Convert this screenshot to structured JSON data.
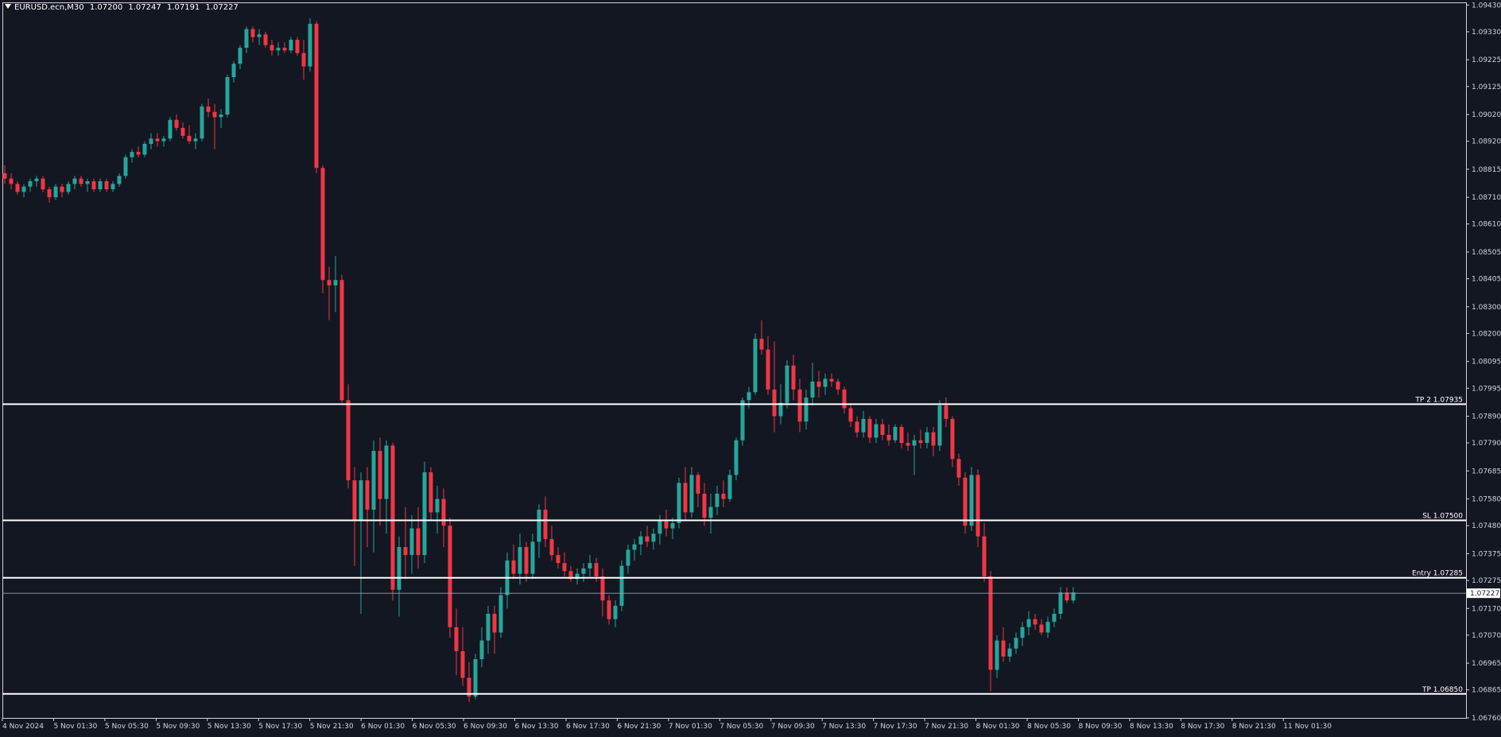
{
  "header": {
    "symbol": "EURUSD.ecn,M30",
    "open": "1.07200",
    "high": "1.07247",
    "low": "1.07191",
    "close": "1.07227"
  },
  "colors": {
    "background": "#131722",
    "bull": "#26a69a",
    "bear": "#f23645",
    "axis": "#d1d4dc",
    "level_line": "#ffffff"
  },
  "chart_data": {
    "type": "candlestick",
    "ylim": [
      1.0676,
      1.0944
    ],
    "y_ticks": [
      "1.09430",
      "1.09330",
      "1.09225",
      "1.09125",
      "1.09020",
      "1.08920",
      "1.08815",
      "1.08710",
      "1.08610",
      "1.08505",
      "1.08405",
      "1.08300",
      "1.08200",
      "1.08095",
      "1.07995",
      "1.07890",
      "1.07790",
      "1.07685",
      "1.07580",
      "1.07480",
      "1.07375",
      "1.07275",
      "1.07170",
      "1.07070",
      "1.06965",
      "1.06865",
      "1.06760"
    ],
    "x_ticks": [
      "4 Nov 2024",
      "5 Nov 01:30",
      "5 Nov 05:30",
      "5 Nov 09:30",
      "5 Nov 13:30",
      "5 Nov 17:30",
      "5 Nov 21:30",
      "6 Nov 01:30",
      "6 Nov 05:30",
      "6 Nov 09:30",
      "6 Nov 13:30",
      "6 Nov 17:30",
      "6 Nov 21:30",
      "7 Nov 01:30",
      "7 Nov 05:30",
      "7 Nov 09:30",
      "7 Nov 13:30",
      "7 Nov 17:30",
      "7 Nov 21:30",
      "8 Nov 01:30",
      "8 Nov 05:30",
      "8 Nov 09:30",
      "8 Nov 13:30",
      "8 Nov 17:30",
      "8 Nov 21:30",
      "11 Nov 01:30"
    ],
    "levels": [
      {
        "label": "TP 2 1.07935",
        "value": 1.07935
      },
      {
        "label": "SL 1.07500",
        "value": 1.075
      },
      {
        "label": "Entry 1.07285",
        "value": 1.07285
      },
      {
        "label": "TP 1.06850",
        "value": 1.0685
      }
    ],
    "current_price": {
      "label": "1.07227",
      "value": 1.07227
    },
    "series": [
      [
        1.088,
        1.0883,
        1.0876,
        1.0878
      ],
      [
        1.0878,
        1.088,
        1.0874,
        1.0876
      ],
      [
        1.0876,
        1.0877,
        1.0872,
        1.0873
      ],
      [
        1.0873,
        1.0876,
        1.0871,
        1.0875
      ],
      [
        1.0875,
        1.0878,
        1.0873,
        1.0877
      ],
      [
        1.0877,
        1.0879,
        1.0875,
        1.0878
      ],
      [
        1.0878,
        1.0879,
        1.0873,
        1.0874
      ],
      [
        1.0874,
        1.0875,
        1.0869,
        1.0871
      ],
      [
        1.0871,
        1.0876,
        1.087,
        1.0875
      ],
      [
        1.0875,
        1.0876,
        1.0871,
        1.0873
      ],
      [
        1.0873,
        1.0877,
        1.0872,
        1.0876
      ],
      [
        1.0876,
        1.0879,
        1.0874,
        1.0878
      ],
      [
        1.0878,
        1.0879,
        1.0875,
        1.0876
      ],
      [
        1.0876,
        1.0878,
        1.0873,
        1.0877
      ],
      [
        1.0877,
        1.0878,
        1.0873,
        1.0874
      ],
      [
        1.0874,
        1.0878,
        1.0873,
        1.0877
      ],
      [
        1.0877,
        1.0878,
        1.0873,
        1.0874
      ],
      [
        1.0874,
        1.0877,
        1.0873,
        1.0876
      ],
      [
        1.0876,
        1.088,
        1.0875,
        1.0879
      ],
      [
        1.0879,
        1.0887,
        1.0878,
        1.0886
      ],
      [
        1.0886,
        1.0889,
        1.0884,
        1.0888
      ],
      [
        1.0888,
        1.089,
        1.0886,
        1.0887
      ],
      [
        1.0887,
        1.0892,
        1.0886,
        1.0891
      ],
      [
        1.0891,
        1.0895,
        1.0889,
        1.0893
      ],
      [
        1.0893,
        1.0895,
        1.089,
        1.0892
      ],
      [
        1.0892,
        1.0894,
        1.089,
        1.0893
      ],
      [
        1.0893,
        1.0901,
        1.0892,
        1.09
      ],
      [
        1.09,
        1.0902,
        1.0896,
        1.0897
      ],
      [
        1.0897,
        1.0899,
        1.0893,
        1.0894
      ],
      [
        1.0894,
        1.0898,
        1.0891,
        1.0892
      ],
      [
        1.0892,
        1.0895,
        1.0889,
        1.0893
      ],
      [
        1.0893,
        1.0906,
        1.0892,
        1.0905
      ],
      [
        1.0905,
        1.0908,
        1.0901,
        1.0903
      ],
      [
        1.0903,
        1.0906,
        1.0889,
        1.0901
      ],
      [
        1.0901,
        1.0904,
        1.0897,
        1.0902
      ],
      [
        1.0902,
        1.0917,
        1.0901,
        1.0916
      ],
      [
        1.0916,
        1.0922,
        1.0914,
        1.0921
      ],
      [
        1.0921,
        1.0928,
        1.0919,
        1.0927
      ],
      [
        1.0927,
        1.0935,
        1.0925,
        1.0934
      ],
      [
        1.0934,
        1.0935,
        1.0929,
        1.0931
      ],
      [
        1.0931,
        1.0934,
        1.0928,
        1.0932
      ],
      [
        1.0932,
        1.0933,
        1.0927,
        1.0928
      ],
      [
        1.0928,
        1.093,
        1.0924,
        1.0926
      ],
      [
        1.0926,
        1.0929,
        1.0924,
        1.0927
      ],
      [
        1.0927,
        1.0929,
        1.0925,
        1.0926
      ],
      [
        1.0926,
        1.0931,
        1.0925,
        1.093
      ],
      [
        1.093,
        1.0931,
        1.0924,
        1.0925
      ],
      [
        1.0925,
        1.093,
        1.0915,
        1.092
      ],
      [
        1.092,
        1.0938,
        1.0918,
        1.0936
      ],
      [
        1.0936,
        1.0937,
        1.088,
        1.0882
      ],
      [
        1.0882,
        1.0883,
        1.0835,
        1.084
      ],
      [
        1.084,
        1.0845,
        1.0825,
        1.0838
      ],
      [
        1.0838,
        1.0849,
        1.0828,
        1.084
      ],
      [
        1.084,
        1.0842,
        1.0794,
        1.0795
      ],
      [
        1.0795,
        1.0801,
        1.0762,
        1.0765
      ],
      [
        1.0765,
        1.077,
        1.0733,
        1.075
      ],
      [
        1.075,
        1.0768,
        1.0715,
        1.0765
      ],
      [
        1.0765,
        1.077,
        1.074,
        1.0754
      ],
      [
        1.0754,
        1.078,
        1.0738,
        1.0776
      ],
      [
        1.0776,
        1.0781,
        1.0748,
        1.0758
      ],
      [
        1.0758,
        1.078,
        1.0745,
        1.0778
      ],
      [
        1.0778,
        1.0779,
        1.072,
        1.0724
      ],
      [
        1.0724,
        1.0744,
        1.0714,
        1.074
      ],
      [
        1.074,
        1.0755,
        1.0728,
        1.0737
      ],
      [
        1.0737,
        1.0752,
        1.073,
        1.0747
      ],
      [
        1.0747,
        1.0755,
        1.0732,
        1.0737
      ],
      [
        1.0737,
        1.0772,
        1.0734,
        1.0768
      ],
      [
        1.0768,
        1.077,
        1.075,
        1.0753
      ],
      [
        1.0753,
        1.0763,
        1.0745,
        1.0758
      ],
      [
        1.0758,
        1.0762,
        1.074,
        1.0748
      ],
      [
        1.0748,
        1.0751,
        1.0706,
        1.071
      ],
      [
        1.071,
        1.0717,
        1.0692,
        1.0701
      ],
      [
        1.0701,
        1.071,
        1.0688,
        1.0691
      ],
      [
        1.0691,
        1.0697,
        1.0682,
        1.0684
      ],
      [
        1.0684,
        1.07,
        1.0683,
        1.0698
      ],
      [
        1.0698,
        1.071,
        1.0695,
        1.0705
      ],
      [
        1.0705,
        1.0718,
        1.07,
        1.0715
      ],
      [
        1.0715,
        1.0718,
        1.07,
        1.0708
      ],
      [
        1.0708,
        1.0725,
        1.0706,
        1.0722
      ],
      [
        1.0722,
        1.0738,
        1.0717,
        1.0735
      ],
      [
        1.0735,
        1.0741,
        1.0728,
        1.073
      ],
      [
        1.073,
        1.0745,
        1.0726,
        1.074
      ],
      [
        1.074,
        1.0742,
        1.0727,
        1.073
      ],
      [
        1.073,
        1.0745,
        1.0728,
        1.0742
      ],
      [
        1.0742,
        1.0756,
        1.0736,
        1.0754
      ],
      [
        1.0754,
        1.0759,
        1.074,
        1.0743
      ],
      [
        1.0743,
        1.0748,
        1.0735,
        1.0737
      ],
      [
        1.0737,
        1.074,
        1.0732,
        1.0734
      ],
      [
        1.0734,
        1.0738,
        1.0729,
        1.0731
      ],
      [
        1.0731,
        1.0733,
        1.0727,
        1.0728
      ],
      [
        1.0728,
        1.0732,
        1.0726,
        1.073
      ],
      [
        1.073,
        1.0734,
        1.0727,
        1.0732
      ],
      [
        1.0732,
        1.0737,
        1.0729,
        1.0734
      ],
      [
        1.0734,
        1.0736,
        1.0727,
        1.0729
      ],
      [
        1.0729,
        1.0732,
        1.0714,
        1.072
      ],
      [
        1.072,
        1.0722,
        1.0711,
        1.0713
      ],
      [
        1.0713,
        1.072,
        1.071,
        1.0718
      ],
      [
        1.0718,
        1.0735,
        1.0716,
        1.0733
      ],
      [
        1.0733,
        1.0741,
        1.073,
        1.0739
      ],
      [
        1.0739,
        1.0743,
        1.0735,
        1.0741
      ],
      [
        1.0741,
        1.0746,
        1.0737,
        1.0744
      ],
      [
        1.0744,
        1.0748,
        1.074,
        1.0742
      ],
      [
        1.0742,
        1.0747,
        1.0739,
        1.0745
      ],
      [
        1.0745,
        1.0752,
        1.0741,
        1.075
      ],
      [
        1.075,
        1.0754,
        1.0744,
        1.0747
      ],
      [
        1.0747,
        1.0751,
        1.0743,
        1.0749
      ],
      [
        1.0749,
        1.0766,
        1.0747,
        1.0764
      ],
      [
        1.0764,
        1.077,
        1.075,
        1.0753
      ],
      [
        1.0753,
        1.077,
        1.0751,
        1.0767
      ],
      [
        1.0767,
        1.0768,
        1.0755,
        1.076
      ],
      [
        1.076,
        1.0764,
        1.0748,
        1.0751
      ],
      [
        1.0751,
        1.076,
        1.0745,
        1.0755
      ],
      [
        1.0755,
        1.0763,
        1.0752,
        1.076
      ],
      [
        1.076,
        1.0765,
        1.0755,
        1.0758
      ],
      [
        1.0758,
        1.0769,
        1.0757,
        1.0767
      ],
      [
        1.0767,
        1.0781,
        1.0765,
        1.078
      ],
      [
        1.078,
        1.0796,
        1.0778,
        1.0795
      ],
      [
        1.0795,
        1.08,
        1.0792,
        1.0798
      ],
      [
        1.0798,
        1.082,
        1.0797,
        1.0818
      ],
      [
        1.0818,
        1.0825,
        1.0812,
        1.0814
      ],
      [
        1.0814,
        1.0819,
        1.0797,
        1.0799
      ],
      [
        1.0799,
        1.0817,
        1.0783,
        1.0789
      ],
      [
        1.0789,
        1.0801,
        1.0786,
        1.0794
      ],
      [
        1.0794,
        1.081,
        1.0792,
        1.0808
      ],
      [
        1.0808,
        1.0812,
        1.0795,
        1.0799
      ],
      [
        1.0799,
        1.0803,
        1.0783,
        1.0787
      ],
      [
        1.0787,
        1.0799,
        1.0784,
        1.0796
      ],
      [
        1.0796,
        1.0809,
        1.0793,
        1.0802
      ],
      [
        1.0802,
        1.0806,
        1.0796,
        1.08
      ],
      [
        1.08,
        1.0805,
        1.0797,
        1.0803
      ],
      [
        1.0803,
        1.0805,
        1.08,
        1.0802
      ],
      [
        1.0802,
        1.0803,
        1.0797,
        1.0799
      ],
      [
        1.0799,
        1.08,
        1.079,
        1.0792
      ],
      [
        1.0792,
        1.0794,
        1.0785,
        1.0787
      ],
      [
        1.0787,
        1.0789,
        1.0781,
        1.0783
      ],
      [
        1.0783,
        1.0791,
        1.0781,
        1.0788
      ],
      [
        1.0788,
        1.0789,
        1.0779,
        1.0781
      ],
      [
        1.0781,
        1.0788,
        1.0779,
        1.0786
      ],
      [
        1.0786,
        1.0788,
        1.078,
        1.0782
      ],
      [
        1.0782,
        1.0786,
        1.0778,
        1.078
      ],
      [
        1.078,
        1.0786,
        1.0779,
        1.0785
      ],
      [
        1.0785,
        1.0786,
        1.0777,
        1.0779
      ],
      [
        1.0779,
        1.0783,
        1.0776,
        1.0778
      ],
      [
        1.0778,
        1.0782,
        1.0767,
        1.078
      ],
      [
        1.078,
        1.0784,
        1.0777,
        1.0779
      ],
      [
        1.0779,
        1.0785,
        1.0777,
        1.0783
      ],
      [
        1.0783,
        1.0785,
        1.0774,
        1.0778
      ],
      [
        1.0778,
        1.0795,
        1.0776,
        1.0793
      ],
      [
        1.0793,
        1.0796,
        1.0785,
        1.0788
      ],
      [
        1.0788,
        1.0789,
        1.077,
        1.0773
      ],
      [
        1.0773,
        1.0775,
        1.0763,
        1.0766
      ],
      [
        1.0766,
        1.0768,
        1.0745,
        1.0748
      ],
      [
        1.0748,
        1.077,
        1.0746,
        1.0767
      ],
      [
        1.0767,
        1.0769,
        1.074,
        1.0744
      ],
      [
        1.0744,
        1.0749,
        1.0727,
        1.0729
      ],
      [
        1.0729,
        1.0731,
        1.0686,
        1.0694
      ],
      [
        1.0694,
        1.0707,
        1.0691,
        1.0705
      ],
      [
        1.0705,
        1.071,
        1.0697,
        1.0699
      ],
      [
        1.0699,
        1.0704,
        1.0697,
        1.0702
      ],
      [
        1.0702,
        1.0708,
        1.07,
        1.0706
      ],
      [
        1.0706,
        1.0712,
        1.0703,
        1.071
      ],
      [
        1.071,
        1.0716,
        1.0707,
        1.0713
      ],
      [
        1.0713,
        1.0715,
        1.0709,
        1.0711
      ],
      [
        1.0711,
        1.0713,
        1.0707,
        1.0708
      ],
      [
        1.0708,
        1.0714,
        1.0706,
        1.0712
      ],
      [
        1.0712,
        1.0717,
        1.071,
        1.0715
      ],
      [
        1.0715,
        1.0725,
        1.0713,
        1.0723
      ],
      [
        1.0723,
        1.0725,
        1.0719,
        1.072
      ],
      [
        1.072,
        1.0725,
        1.0719,
        1.0723
      ]
    ]
  }
}
